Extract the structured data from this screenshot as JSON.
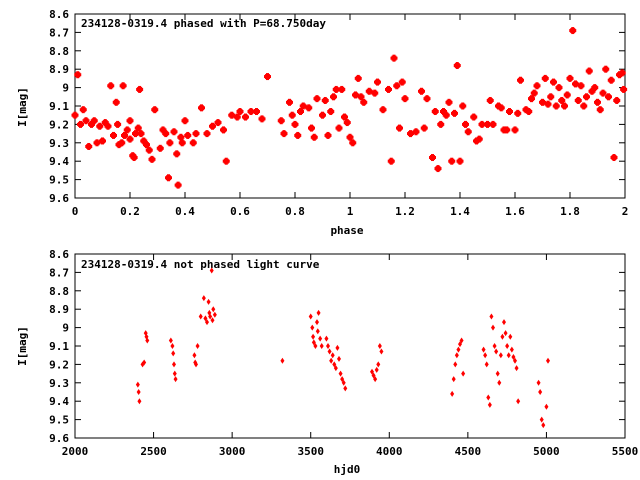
{
  "chart_data": [
    {
      "type": "scatter",
      "title": "234128-0319.4 phased with P=68.750day",
      "xlabel": "phase",
      "ylabel": "I[mag]",
      "xlim": [
        0,
        2
      ],
      "ylim": [
        9.6,
        8.6
      ],
      "xticks": [
        "0",
        "0.2",
        "0.4",
        "0.6",
        "0.8",
        "1",
        "1.2",
        "1.4",
        "1.6",
        "1.8",
        "2"
      ],
      "yticks": [
        "8.6",
        "8.7",
        "8.8",
        "8.9",
        "9",
        "9.1",
        "9.2",
        "9.3",
        "9.4",
        "9.5",
        "9.6"
      ],
      "marker": "star",
      "color": "#ff0000",
      "series": [
        {
          "points": [
            [
              0.0,
              9.15
            ],
            [
              0.01,
              8.93
            ],
            [
              0.02,
              9.2
            ],
            [
              0.03,
              9.12
            ],
            [
              0.04,
              9.18
            ],
            [
              0.05,
              9.32
            ],
            [
              0.06,
              9.2
            ],
            [
              0.07,
              9.18
            ],
            [
              0.08,
              9.3
            ],
            [
              0.09,
              9.21
            ],
            [
              0.1,
              9.29
            ],
            [
              0.11,
              9.19
            ],
            [
              0.12,
              9.21
            ],
            [
              0.13,
              8.99
            ],
            [
              0.14,
              9.26
            ],
            [
              0.15,
              9.08
            ],
            [
              0.155,
              9.2
            ],
            [
              0.16,
              9.31
            ],
            [
              0.17,
              9.3
            ],
            [
              0.175,
              8.99
            ],
            [
              0.18,
              9.26
            ],
            [
              0.19,
              9.23
            ],
            [
              0.2,
              9.28
            ],
            [
              0.2,
              9.18
            ],
            [
              0.21,
              9.37
            ],
            [
              0.215,
              9.38
            ],
            [
              0.22,
              9.25
            ],
            [
              0.23,
              9.22
            ],
            [
              0.235,
              9.01
            ],
            [
              0.24,
              9.25
            ],
            [
              0.25,
              9.29
            ],
            [
              0.26,
              9.31
            ],
            [
              0.27,
              9.34
            ],
            [
              0.28,
              9.39
            ],
            [
              0.29,
              9.12
            ],
            [
              0.31,
              9.33
            ],
            [
              0.32,
              9.23
            ],
            [
              0.33,
              9.25
            ],
            [
              0.34,
              9.49
            ],
            [
              0.345,
              9.3
            ],
            [
              0.36,
              9.24
            ],
            [
              0.37,
              9.36
            ],
            [
              0.375,
              9.53
            ],
            [
              0.385,
              9.27
            ],
            [
              0.39,
              9.3
            ],
            [
              0.4,
              9.18
            ],
            [
              0.41,
              9.26
            ],
            [
              0.43,
              9.3
            ],
            [
              0.44,
              9.25
            ],
            [
              0.46,
              9.11
            ],
            [
              0.48,
              9.25
            ],
            [
              0.5,
              9.21
            ],
            [
              0.52,
              9.19
            ],
            [
              0.54,
              9.23
            ],
            [
              0.55,
              9.4
            ],
            [
              0.57,
              9.15
            ],
            [
              0.59,
              9.16
            ],
            [
              0.6,
              9.13
            ],
            [
              0.62,
              9.16
            ],
            [
              0.64,
              9.13
            ],
            [
              0.66,
              9.13
            ],
            [
              0.68,
              9.17
            ],
            [
              0.7,
              8.94
            ],
            [
              0.75,
              9.18
            ],
            [
              0.76,
              9.25
            ],
            [
              0.78,
              9.08
            ],
            [
              0.79,
              9.15
            ],
            [
              0.8,
              9.2
            ],
            [
              0.81,
              9.26
            ],
            [
              0.82,
              9.13
            ],
            [
              0.83,
              9.1
            ],
            [
              0.85,
              9.11
            ],
            [
              0.86,
              9.22
            ],
            [
              0.87,
              9.27
            ],
            [
              0.88,
              9.06
            ],
            [
              0.9,
              9.15
            ],
            [
              0.91,
              9.07
            ],
            [
              0.92,
              9.26
            ],
            [
              0.93,
              9.13
            ],
            [
              0.94,
              9.05
            ],
            [
              0.95,
              9.01
            ],
            [
              0.96,
              9.22
            ],
            [
              0.97,
              9.01
            ],
            [
              0.98,
              9.16
            ],
            [
              0.99,
              9.19
            ],
            [
              1.0,
              9.27
            ],
            [
              1.01,
              9.3
            ],
            [
              1.02,
              9.04
            ],
            [
              1.03,
              8.95
            ],
            [
              1.04,
              9.05
            ],
            [
              1.05,
              9.08
            ],
            [
              1.07,
              9.02
            ],
            [
              1.09,
              9.03
            ],
            [
              1.1,
              8.97
            ],
            [
              1.12,
              9.12
            ],
            [
              1.14,
              9.01
            ],
            [
              1.15,
              9.4
            ],
            [
              1.16,
              8.84
            ],
            [
              1.17,
              8.99
            ],
            [
              1.18,
              9.22
            ],
            [
              1.19,
              8.97
            ],
            [
              1.2,
              9.06
            ],
            [
              1.22,
              9.25
            ],
            [
              1.24,
              9.24
            ],
            [
              1.26,
              9.02
            ],
            [
              1.27,
              9.22
            ],
            [
              1.28,
              9.06
            ],
            [
              1.3,
              9.38
            ],
            [
              1.31,
              9.13
            ],
            [
              1.32,
              9.44
            ],
            [
              1.33,
              9.2
            ],
            [
              1.34,
              9.13
            ],
            [
              1.35,
              9.15
            ],
            [
              1.36,
              9.08
            ],
            [
              1.37,
              9.4
            ],
            [
              1.38,
              9.14
            ],
            [
              1.39,
              8.88
            ],
            [
              1.4,
              9.4
            ],
            [
              1.41,
              9.1
            ],
            [
              1.42,
              9.2
            ],
            [
              1.43,
              9.24
            ],
            [
              1.45,
              9.16
            ],
            [
              1.46,
              9.29
            ],
            [
              1.47,
              9.28
            ],
            [
              1.48,
              9.2
            ],
            [
              1.5,
              9.2
            ],
            [
              1.51,
              9.07
            ],
            [
              1.52,
              9.2
            ],
            [
              1.54,
              9.1
            ],
            [
              1.55,
              9.11
            ],
            [
              1.56,
              9.23
            ],
            [
              1.57,
              9.23
            ],
            [
              1.58,
              9.13
            ],
            [
              1.6,
              9.23
            ],
            [
              1.61,
              9.14
            ],
            [
              1.62,
              8.96
            ],
            [
              1.64,
              9.12
            ],
            [
              1.65,
              9.13
            ],
            [
              1.66,
              9.06
            ],
            [
              1.67,
              9.03
            ],
            [
              1.68,
              8.99
            ],
            [
              1.7,
              9.08
            ],
            [
              1.71,
              8.95
            ],
            [
              1.72,
              9.09
            ],
            [
              1.73,
              9.05
            ],
            [
              1.74,
              8.97
            ],
            [
              1.75,
              9.1
            ],
            [
              1.76,
              9.0
            ],
            [
              1.77,
              9.07
            ],
            [
              1.78,
              9.1
            ],
            [
              1.79,
              9.04
            ],
            [
              1.8,
              8.95
            ],
            [
              1.81,
              8.69
            ],
            [
              1.82,
              8.98
            ],
            [
              1.83,
              9.07
            ],
            [
              1.84,
              8.99
            ],
            [
              1.85,
              9.1
            ],
            [
              1.86,
              9.05
            ],
            [
              1.87,
              8.91
            ],
            [
              1.88,
              9.02
            ],
            [
              1.89,
              9.0
            ],
            [
              1.9,
              9.08
            ],
            [
              1.91,
              9.12
            ],
            [
              1.92,
              9.03
            ],
            [
              1.93,
              8.9
            ],
            [
              1.94,
              9.05
            ],
            [
              1.95,
              8.96
            ],
            [
              1.96,
              9.38
            ],
            [
              1.97,
              9.07
            ],
            [
              1.98,
              8.93
            ],
            [
              1.99,
              8.92
            ],
            [
              1.995,
              9.01
            ]
          ]
        }
      ]
    },
    {
      "type": "scatter",
      "title": "234128-0319.4 not phased light curve",
      "xlabel": "hjd0",
      "ylabel": "I[mag]",
      "xlim": [
        2000,
        5500
      ],
      "ylim": [
        9.6,
        8.6
      ],
      "xticks": [
        "2000",
        "2500",
        "3000",
        "3500",
        "4000",
        "4500",
        "5000",
        "5500"
      ],
      "yticks": [
        "8.6",
        "8.7",
        "8.8",
        "8.9",
        "9",
        "9.1",
        "9.2",
        "9.3",
        "9.4",
        "9.5",
        "9.6"
      ],
      "marker": "diamond",
      "color": "#ff0000",
      "series": [
        {
          "points": [
            [
              2400,
              9.31
            ],
            [
              2405,
              9.35
            ],
            [
              2410,
              9.4
            ],
            [
              2430,
              9.2
            ],
            [
              2440,
              9.19
            ],
            [
              2450,
              9.03
            ],
            [
              2455,
              9.05
            ],
            [
              2460,
              9.07
            ],
            [
              2610,
              9.07
            ],
            [
              2620,
              9.1
            ],
            [
              2625,
              9.14
            ],
            [
              2630,
              9.2
            ],
            [
              2635,
              9.25
            ],
            [
              2640,
              9.28
            ],
            [
              2760,
              9.15
            ],
            [
              2765,
              9.19
            ],
            [
              2770,
              9.2
            ],
            [
              2780,
              9.1
            ],
            [
              2800,
              8.94
            ],
            [
              2820,
              8.84
            ],
            [
              2830,
              8.95
            ],
            [
              2840,
              8.97
            ],
            [
              2850,
              8.86
            ],
            [
              2855,
              8.92
            ],
            [
              2860,
              8.94
            ],
            [
              2870,
              8.69
            ],
            [
              2875,
              8.96
            ],
            [
              2880,
              8.9
            ],
            [
              2890,
              8.93
            ],
            [
              3320,
              9.18
            ],
            [
              3500,
              8.94
            ],
            [
              3510,
              9.0
            ],
            [
              3515,
              9.05
            ],
            [
              3520,
              9.08
            ],
            [
              3530,
              9.1
            ],
            [
              3540,
              8.97
            ],
            [
              3545,
              9.02
            ],
            [
              3550,
              8.92
            ],
            [
              3560,
              9.06
            ],
            [
              3570,
              9.1
            ],
            [
              3600,
              9.06
            ],
            [
              3610,
              9.1
            ],
            [
              3620,
              9.13
            ],
            [
              3630,
              9.18
            ],
            [
              3640,
              9.15
            ],
            [
              3650,
              9.2
            ],
            [
              3660,
              9.22
            ],
            [
              3670,
              9.11
            ],
            [
              3680,
              9.17
            ],
            [
              3690,
              9.25
            ],
            [
              3700,
              9.28
            ],
            [
              3710,
              9.3
            ],
            [
              3720,
              9.33
            ],
            [
              3890,
              9.24
            ],
            [
              3900,
              9.26
            ],
            [
              3910,
              9.28
            ],
            [
              3920,
              9.23
            ],
            [
              3930,
              9.2
            ],
            [
              3940,
              9.1
            ],
            [
              3950,
              9.13
            ],
            [
              4400,
              9.36
            ],
            [
              4410,
              9.28
            ],
            [
              4420,
              9.2
            ],
            [
              4430,
              9.15
            ],
            [
              4440,
              9.12
            ],
            [
              4450,
              9.09
            ],
            [
              4460,
              9.07
            ],
            [
              4470,
              9.25
            ],
            [
              4600,
              9.12
            ],
            [
              4610,
              9.15
            ],
            [
              4620,
              9.2
            ],
            [
              4630,
              9.38
            ],
            [
              4640,
              9.42
            ],
            [
              4650,
              8.94
            ],
            [
              4660,
              9.0
            ],
            [
              4670,
              9.1
            ],
            [
              4680,
              9.13
            ],
            [
              4690,
              9.25
            ],
            [
              4700,
              9.3
            ],
            [
              4710,
              9.15
            ],
            [
              4720,
              9.05
            ],
            [
              4730,
              8.97
            ],
            [
              4740,
              9.03
            ],
            [
              4750,
              9.1
            ],
            [
              4760,
              9.15
            ],
            [
              4770,
              9.05
            ],
            [
              4780,
              9.12
            ],
            [
              4790,
              9.16
            ],
            [
              4800,
              9.18
            ],
            [
              4810,
              9.22
            ],
            [
              4820,
              9.4
            ],
            [
              4950,
              9.3
            ],
            [
              4960,
              9.35
            ],
            [
              4970,
              9.5
            ],
            [
              4980,
              9.53
            ],
            [
              5000,
              9.43
            ],
            [
              5010,
              9.18
            ]
          ]
        }
      ]
    }
  ]
}
